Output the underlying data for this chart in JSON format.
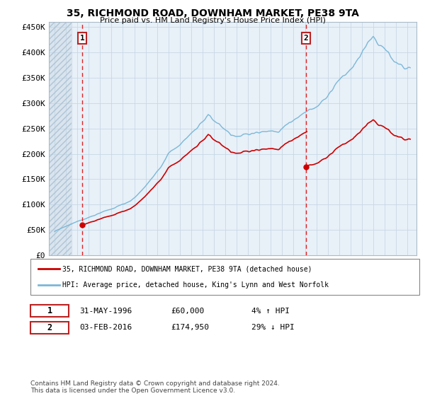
{
  "title": "35, RICHMOND ROAD, DOWNHAM MARKET, PE38 9TA",
  "subtitle": "Price paid vs. HM Land Registry's House Price Index (HPI)",
  "legend_line1": "35, RICHMOND ROAD, DOWNHAM MARKET, PE38 9TA (detached house)",
  "legend_line2": "HPI: Average price, detached house, King's Lynn and West Norfolk",
  "footnote": "Contains HM Land Registry data © Crown copyright and database right 2024.\nThis data is licensed under the Open Government Licence v3.0.",
  "transaction1_date": "31-MAY-1996",
  "transaction1_price": "£60,000",
  "transaction1_hpi": "4% ↑ HPI",
  "transaction2_date": "03-FEB-2016",
  "transaction2_price": "£174,950",
  "transaction2_hpi": "29% ↓ HPI",
  "ylim": [
    0,
    460000
  ],
  "yticks": [
    0,
    50000,
    100000,
    150000,
    200000,
    250000,
    300000,
    350000,
    400000,
    450000
  ],
  "ytick_labels": [
    "£0",
    "£50K",
    "£100K",
    "£150K",
    "£200K",
    "£250K",
    "£300K",
    "£350K",
    "£400K",
    "£450K"
  ],
  "transaction1_year": 1996.42,
  "transaction2_year": 2016.09,
  "hpi_color": "#7ab8d8",
  "price_color": "#cc0000",
  "vline_color": "#dd2222",
  "point_color": "#cc0000",
  "grid_color": "#c0d4e4",
  "bg_color": "#e8f0f8"
}
